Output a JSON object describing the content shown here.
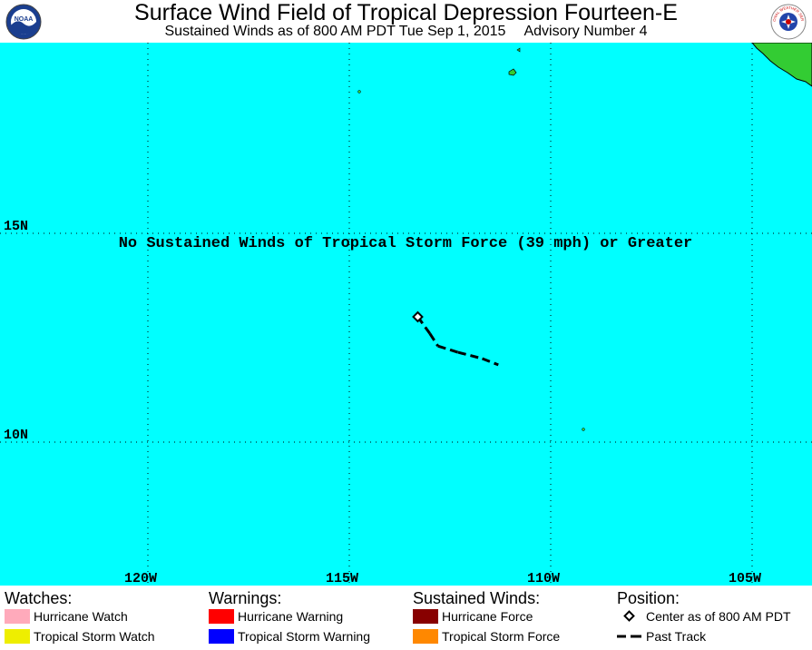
{
  "header": {
    "title": "Surface Wind Field of Tropical Depression Fourteen-E",
    "subtitle_time": "Sustained Winds as of 800 AM PDT Tue Sep 1, 2015",
    "subtitle_advisory": "Advisory Number 4",
    "logo_left_text": "NOAA",
    "logo_right_text": "NATIONAL WEATHER SERVICE"
  },
  "map": {
    "ocean_color": "#00ffff",
    "land_color": "#33cc33",
    "message": "No Sustained Winds of Tropical Storm Force (39 mph) or Greater",
    "lat_labels": [
      "15N",
      "10N"
    ],
    "lon_labels": [
      "120W",
      "115W",
      "110W",
      "105W"
    ],
    "storm_center": {
      "lat": 13.0,
      "lon": 113.3
    },
    "past_track": [
      {
        "lat": 13.0,
        "lon": 113.3
      },
      {
        "lat": 12.6,
        "lon": 113.0
      },
      {
        "lat": 12.3,
        "lon": 112.8
      },
      {
        "lat": 12.15,
        "lon": 112.3
      },
      {
        "lat": 12.0,
        "lon": 111.7
      },
      {
        "lat": 11.85,
        "lon": 111.3
      }
    ]
  },
  "legend": {
    "watches": {
      "heading": "Watches:",
      "items": [
        {
          "label": "Hurricane Watch",
          "color": "#ffaabb"
        },
        {
          "label": "Tropical Storm Watch",
          "color": "#eeee00"
        }
      ]
    },
    "warnings": {
      "heading": "Warnings:",
      "items": [
        {
          "label": "Hurricane Warning",
          "color": "#ff0000"
        },
        {
          "label": "Tropical Storm Warning",
          "color": "#0000ff"
        }
      ]
    },
    "winds": {
      "heading": "Sustained Winds:",
      "items": [
        {
          "label": "Hurricane Force",
          "color": "#880000"
        },
        {
          "label": "Tropical Storm Force",
          "color": "#ff8800"
        }
      ]
    },
    "position": {
      "heading": "Position:",
      "center_label": "Center as of 800 AM PDT",
      "track_label": "Past Track"
    }
  }
}
